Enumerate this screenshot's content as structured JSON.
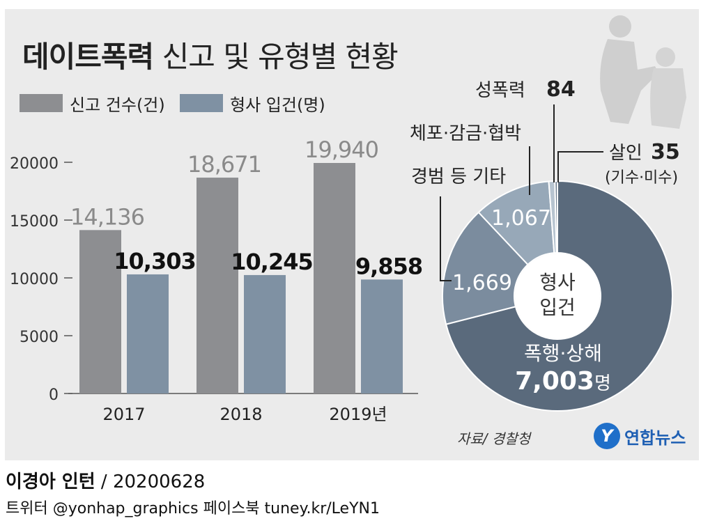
{
  "title_bold": "데이트폭력",
  "title_rest": "신고 및 유형별 현황",
  "legend": [
    {
      "label": "신고 건수(건)",
      "color": "#8d8e91"
    },
    {
      "label": "형사 입건(명)",
      "color": "#7f91a3"
    }
  ],
  "credit": {
    "author": "이경아 인턴",
    "date": " / 20200628"
  },
  "social": "트위터 @yonhap_graphics  페이스북 tuney.kr/LeYN1",
  "source": "자료/ 경찰청",
  "logo": {
    "mark": "Y",
    "text": "연합뉴스"
  },
  "colors": {
    "reports": "#8d8e91",
    "booked": "#7f91a3",
    "report_label": "#8a8a8a",
    "booked_label": "#111111",
    "donut": [
      "#5a6a7c",
      "#7b8c9e",
      "#97a8b8",
      "#b7c4d0",
      "#6a7b8d"
    ]
  },
  "chart_data": [
    {
      "type": "bar",
      "categories": [
        "2017",
        "2018",
        "2019년"
      ],
      "ylim": [
        0,
        20000
      ],
      "yticks": [
        "0",
        "5000",
        "10000",
        "15000",
        "20000"
      ],
      "yticks_values": [
        0,
        5000,
        10000,
        15000,
        20000
      ],
      "legend_position": "top-left",
      "series": [
        {
          "name": "신고 건수(건)",
          "values": [
            14136,
            18671,
            19940
          ],
          "labels": [
            "14,136",
            "18,671",
            "19,940"
          ]
        },
        {
          "name": "형사 입건(명)",
          "values": [
            10303,
            10245,
            9858
          ],
          "labels": [
            "10,303",
            "10,245",
            "9,858"
          ]
        }
      ]
    },
    {
      "type": "pie",
      "variant": "donut",
      "center_label": [
        "형사",
        "입건"
      ],
      "slices": [
        {
          "name": "폭행·상해",
          "value": 7003,
          "label": "7,003",
          "unit": "명"
        },
        {
          "name": "경범 등 기타",
          "value": 1669,
          "label": "1,669"
        },
        {
          "name": "체포·감금·협박",
          "value": 1067,
          "label": "1,067"
        },
        {
          "name": "성폭력",
          "value": 84,
          "label": "84"
        },
        {
          "name": "살인",
          "sub": "(기수·미수)",
          "value": 35,
          "label": "35"
        }
      ]
    }
  ]
}
